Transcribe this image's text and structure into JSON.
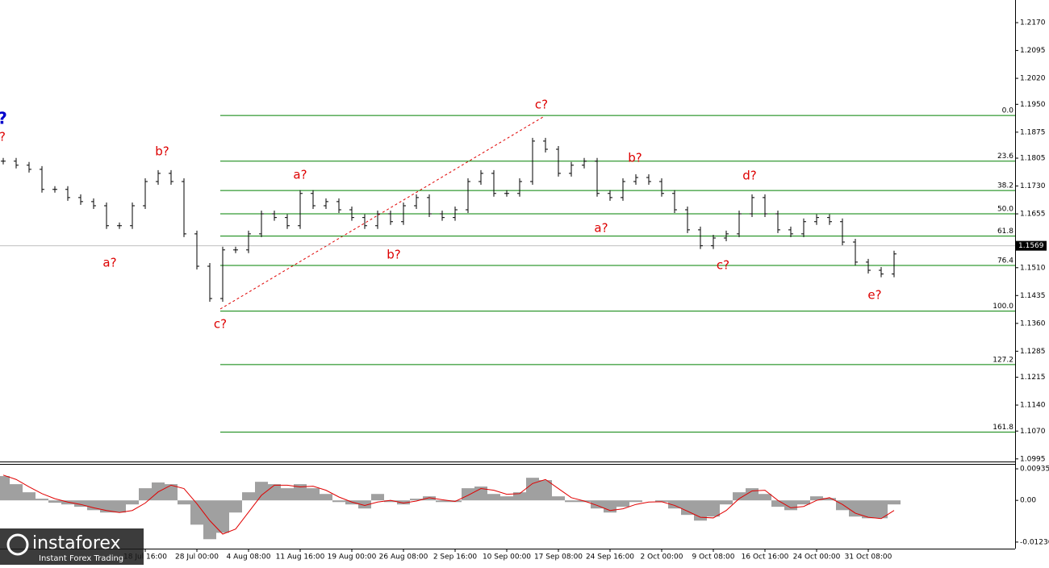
{
  "chart_data": [
    {
      "type": "ohlc",
      "color": "#000000",
      "categories": [
        null,
        null,
        null,
        null,
        null,
        null,
        null,
        null,
        null,
        null,
        null,
        "18 Jul 16:00",
        null,
        null,
        null,
        "28 Jul 00:00",
        null,
        null,
        null,
        "4 Aug 08:00",
        null,
        null,
        null,
        "11 Aug 16:00",
        null,
        null,
        null,
        "19 Aug 00:00",
        null,
        null,
        null,
        "26 Aug 08:00",
        null,
        null,
        null,
        "2 Sep 16:00",
        null,
        null,
        null,
        "10 Sep 00:00",
        null,
        null,
        null,
        "17 Sep 08:00",
        null,
        null,
        null,
        "24 Sep 16:00",
        null,
        null,
        null,
        "2 Oct 00:00",
        null,
        null,
        null,
        "9 Oct 08:00",
        null,
        null,
        null,
        "16 Oct 16:00",
        null,
        null,
        null,
        "24 Oct 00:00",
        null,
        null,
        null,
        "31 Oct 08:00",
        null,
        null
      ],
      "values": [
        1.1797,
        1.1786,
        1.1775,
        1.1721,
        1.1721,
        1.1699,
        1.1688,
        1.1677,
        1.1623,
        1.1623,
        1.1677,
        1.1742,
        1.1764,
        1.1742,
        1.1601,
        1.1514,
        1.1427,
        1.1558,
        1.1558,
        1.1601,
        1.1655,
        1.1645,
        1.1623,
        1.171,
        1.1677,
        1.1688,
        1.1666,
        1.1645,
        1.1623,
        1.1655,
        1.1634,
        1.1677,
        1.1699,
        1.1655,
        1.1645,
        1.1666,
        1.1742,
        1.1764,
        1.171,
        1.171,
        1.1742,
        1.1851,
        1.1829,
        1.1764,
        1.1786,
        1.1797,
        1.171,
        1.1699,
        1.1742,
        1.1753,
        1.1742,
        1.171,
        1.1666,
        1.1612,
        1.1569,
        1.159,
        1.1601,
        1.1655,
        1.1699,
        1.1655,
        1.1612,
        1.1601,
        1.1634,
        1.1645,
        1.1634,
        1.1579,
        1.1525,
        1.1503,
        1.1493,
        1.1547
      ],
      "ylim": [
        1.0988,
        1.2231
      ],
      "yticks": [
        {
          "value": 1.217,
          "label": "1.2170"
        },
        {
          "value": 1.2095,
          "label": "1.2095"
        },
        {
          "value": 1.202,
          "label": "1.2020"
        },
        {
          "value": 1.195,
          "label": "1.1950"
        },
        {
          "value": 1.1875,
          "label": "1.1875"
        },
        {
          "value": 1.1805,
          "label": "1.1805"
        },
        {
          "value": 1.173,
          "label": "1.1730"
        },
        {
          "value": 1.1655,
          "label": "1.1655"
        },
        {
          "value": 1.151,
          "label": "1.1510"
        },
        {
          "value": 1.1435,
          "label": "1.1435"
        },
        {
          "value": 1.136,
          "label": "1.1360"
        },
        {
          "value": 1.1285,
          "label": "1.1285"
        },
        {
          "value": 1.1215,
          "label": "1.1215"
        },
        {
          "value": 1.114,
          "label": "1.1140"
        },
        {
          "value": 1.107,
          "label": "1.1070"
        },
        {
          "value": 1.0995,
          "label": "1.0995"
        }
      ],
      "last_price": 1.1569,
      "levels_color": "#008000",
      "levels": [
        {
          "label": "0.0",
          "value": 1.192
        },
        {
          "label": "23.6",
          "value": 1.1797
        },
        {
          "label": "38.2",
          "value": 1.1718
        },
        {
          "label": "50.0",
          "value": 1.1655
        },
        {
          "label": "61.8",
          "value": 1.1595
        },
        {
          "label": "76.4",
          "value": 1.1516
        },
        {
          "label": "100.0",
          "value": 1.1393
        },
        {
          "label": "127.2",
          "value": 1.1249
        },
        {
          "label": "161.8",
          "value": 1.1067
        }
      ],
      "annotations": [
        {
          "text": "?",
          "color": "#0000cc"
        },
        {
          "text": "?",
          "color": "#dd0000"
        },
        {
          "text": "b?",
          "color": "#dd0000"
        },
        {
          "text": "a?",
          "color": "#dd0000"
        },
        {
          "text": "c?",
          "color": "#dd0000"
        },
        {
          "text": "a?",
          "color": "#dd0000"
        },
        {
          "text": "b?",
          "color": "#dd0000"
        },
        {
          "text": "c?",
          "color": "#dd0000"
        },
        {
          "text": "a?",
          "color": "#dd0000"
        },
        {
          "text": "b?",
          "color": "#dd0000"
        },
        {
          "text": "c?",
          "color": "#dd0000"
        },
        {
          "text": "d?",
          "color": "#dd0000"
        },
        {
          "text": "e?",
          "color": "#dd0000"
        }
      ],
      "watermark": {
        "title": "instaforex",
        "subtitle": "Instant Forex Trading"
      }
    },
    {
      "type": "macd",
      "color": "#a0a0a0",
      "signal_color": "#e00000",
      "values": [
        0.0072,
        0.0048,
        0.0024,
        0.0005,
        -0.0007,
        -0.0012,
        -0.0019,
        -0.0029,
        -0.0036,
        -0.0036,
        -0.0012,
        0.0036,
        0.0053,
        0.0048,
        -0.0012,
        -0.0072,
        -0.0115,
        -0.0096,
        -0.0036,
        0.0024,
        0.0055,
        0.0048,
        0.0036,
        0.0048,
        0.0036,
        0.0019,
        -0.0005,
        -0.0012,
        -0.0024,
        0.0019,
        -0.0005,
        -0.0012,
        0.0005,
        0.0012,
        -0.0005,
        -0.0005,
        0.0036,
        0.0041,
        0.0019,
        0.0012,
        0.0024,
        0.0067,
        0.006,
        0.0012,
        -0.0005,
        -0.0005,
        -0.0024,
        -0.0036,
        -0.0019,
        -0.0005,
        0,
        -0.0005,
        -0.0024,
        -0.0043,
        -0.006,
        -0.0048,
        -0.0012,
        0.0024,
        0.0036,
        0.0019,
        -0.0019,
        -0.0029,
        -0.0012,
        0.0012,
        0.0007,
        -0.0029,
        -0.0048,
        -0.0053,
        -0.0053,
        -0.0012
      ],
      "signal": [
        0.0075,
        0.0062,
        0.004,
        0.002,
        0.0005,
        -0.0005,
        -0.0012,
        -0.0022,
        -0.003,
        -0.0036,
        -0.003,
        -0.0008,
        0.0025,
        0.0045,
        0.0035,
        -0.001,
        -0.006,
        -0.01,
        -0.0085,
        -0.0035,
        0.0015,
        0.0045,
        0.0045,
        0.004,
        0.0042,
        0.003,
        0.001,
        -0.0005,
        -0.0015,
        -0.0005,
        0,
        -0.0008,
        -0.0002,
        0.0008,
        0.0002,
        -0.0003,
        0.0015,
        0.0035,
        0.003,
        0.0018,
        0.002,
        0.005,
        0.0062,
        0.0035,
        0.0008,
        -0.0002,
        -0.0015,
        -0.003,
        -0.0025,
        -0.0012,
        -0.0005,
        -0.0004,
        -0.0015,
        -0.0032,
        -0.005,
        -0.0052,
        -0.003,
        0.0005,
        0.0028,
        0.003,
        0,
        -0.0022,
        -0.0018,
        0,
        0.0008,
        -0.0012,
        -0.0038,
        -0.005,
        -0.0054,
        -0.003
      ],
      "ylim": [
        -0.0143,
        0.0108
      ],
      "yticks": [
        0.00935,
        {
          "value": 0,
          "label": "0.00"
        },
        -0.01236
      ]
    }
  ]
}
